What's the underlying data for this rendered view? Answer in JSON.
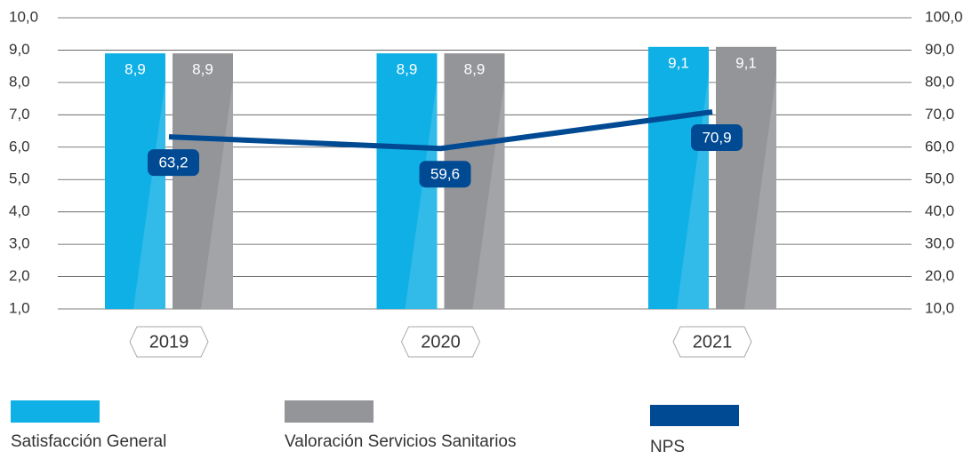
{
  "chart_data": {
    "type": "bar",
    "categories": [
      "2019",
      "2020",
      "2021"
    ],
    "series": [
      {
        "name": "Satisfacción General",
        "color": "#0fb0e6",
        "values": [
          8.9,
          8.9,
          9.1
        ],
        "value_labels": [
          "8,9",
          "8,9",
          "9,1"
        ]
      },
      {
        "name": "Valoración Servicios Sanitarios",
        "color": "#939598",
        "values": [
          8.9,
          8.9,
          9.1
        ],
        "value_labels": [
          "8,9",
          "8,9",
          "9,1"
        ]
      },
      {
        "name": "NPS",
        "color": "#004a93",
        "type": "line",
        "axis": "y2",
        "values": [
          63.2,
          59.6,
          70.9
        ],
        "value_labels": [
          "63,2",
          "59,6",
          "70,9"
        ]
      }
    ],
    "ylim": [
      1,
      10
    ],
    "yticks": [
      {
        "value": 1,
        "label": "1,0"
      },
      {
        "value": 2,
        "label": "2,0"
      },
      {
        "value": 3,
        "label": "3,0"
      },
      {
        "value": 4,
        "label": "4,0"
      },
      {
        "value": 5,
        "label": "5,0"
      },
      {
        "value": 6,
        "label": "6,0"
      },
      {
        "value": 7,
        "label": "7,0"
      },
      {
        "value": 8,
        "label": "8,0"
      },
      {
        "value": 9,
        "label": "9,0"
      },
      {
        "value": 10,
        "label": "10,0"
      }
    ],
    "y2lim": [
      10,
      100
    ],
    "y2ticks": [
      {
        "value": 10,
        "label": "10,0"
      },
      {
        "value": 20,
        "label": "20,0"
      },
      {
        "value": 30,
        "label": "30,0"
      },
      {
        "value": 40,
        "label": "40,0"
      },
      {
        "value": 50,
        "label": "50,0"
      },
      {
        "value": 60,
        "label": "60,0"
      },
      {
        "value": 70,
        "label": "70,0"
      },
      {
        "value": 80,
        "label": "80,0"
      },
      {
        "value": 90,
        "label": "90,0"
      },
      {
        "value": 100,
        "label": "100,0"
      }
    ],
    "grid": true
  }
}
